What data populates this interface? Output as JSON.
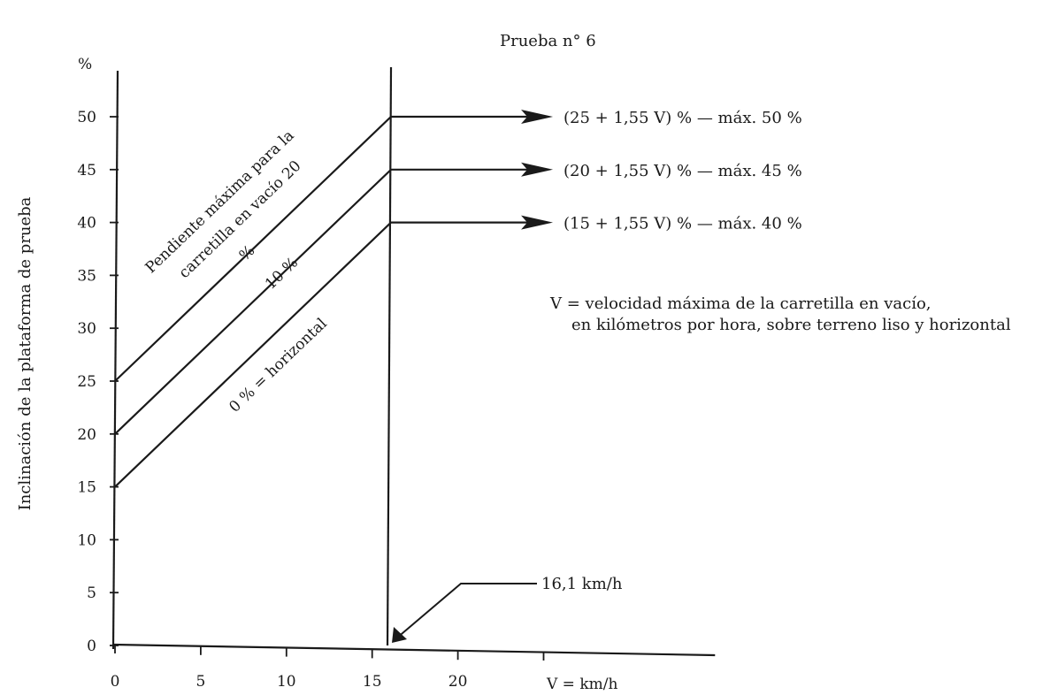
{
  "chart_data": {
    "type": "line",
    "title": "Prueba n° 6",
    "ylabel": "Inclinación de la plataforma de prueba",
    "y_unit_label": "%",
    "xlabel": "V = km/h",
    "x_ticks": [
      0,
      5,
      10,
      15,
      20
    ],
    "y_ticks": [
      0,
      5,
      10,
      15,
      20,
      25,
      30,
      35,
      40,
      45,
      50
    ],
    "xlim": [
      0,
      35
    ],
    "ylim": [
      0,
      50
    ],
    "grid": false,
    "vertical_line_x": 16.1,
    "series": [
      {
        "name": "Pendiente máxima para la carretilla en vacío 20 %",
        "x": [
          0,
          16.1,
          24.1
        ],
        "y": [
          25,
          50,
          50
        ],
        "end_label": "(25 + 1,55  V) % — máx. 50 %"
      },
      {
        "name": "10 %",
        "x": [
          0,
          16.1,
          24.1
        ],
        "y": [
          20,
          45,
          45
        ],
        "end_label": "(20 + 1,55  V) % — máx. 45 %"
      },
      {
        "name": "0 % = horizontal",
        "x": [
          0,
          16.1,
          24.1
        ],
        "y": [
          15,
          40,
          40
        ],
        "end_label": "(15 + 1,55  V) % — máx. 40 %"
      }
    ],
    "annotation_speed": "16,1 km/h",
    "note_line1": "V = velocidad máxima de la carretilla en vacío,",
    "note_line2": "en kilómetros por hora, sobre terreno liso y horizontal"
  }
}
